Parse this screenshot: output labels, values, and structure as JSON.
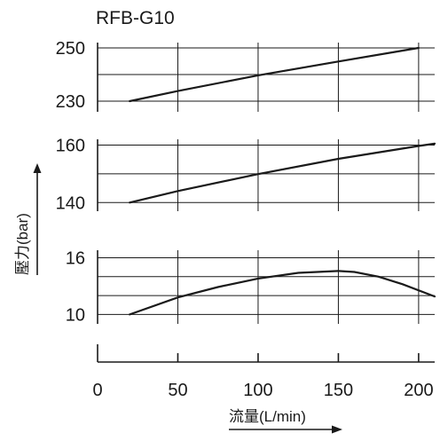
{
  "chart_data": {
    "type": "line",
    "title": "RFB-G10",
    "xlabel": "流量(L/min)",
    "ylabel": "壓力(bar)",
    "grid": true,
    "x_ticks": [
      0,
      50,
      100,
      150,
      200
    ],
    "xlim": [
      0,
      210
    ],
    "panels": [
      {
        "name": "panel-top",
        "ylim": [
          226,
          252
        ],
        "y_ticks": [
          230,
          250
        ],
        "y_grid": [
          230,
          240,
          250
        ],
        "series": [
          {
            "x": [
              20,
              50,
              100,
              150,
              200
            ],
            "y": [
              230.0,
              233.8,
              239.7,
              244.9,
              250.0
            ]
          }
        ]
      },
      {
        "name": "panel-middle",
        "ylim": [
          137,
          162
        ],
        "y_ticks": [
          140,
          160
        ],
        "y_grid": [
          140,
          150,
          160
        ],
        "series": [
          {
            "x": [
              20,
              50,
              100,
              150,
              200,
              210
            ],
            "y": [
              140.0,
              144.0,
              149.9,
              155.2,
              159.7,
              160.5
            ]
          }
        ]
      },
      {
        "name": "panel-bottom",
        "ylim": [
          9,
          16.8
        ],
        "y_ticks": [
          10,
          16
        ],
        "y_grid": [
          10,
          12,
          14,
          16
        ],
        "series": [
          {
            "x": [
              20,
              50,
              75,
              100,
              125,
              150,
              160,
              175,
              190,
              210
            ],
            "y": [
              10.0,
              11.8,
              12.9,
              13.8,
              14.4,
              14.6,
              14.5,
              14.0,
              13.2,
              11.9
            ]
          }
        ]
      }
    ]
  }
}
